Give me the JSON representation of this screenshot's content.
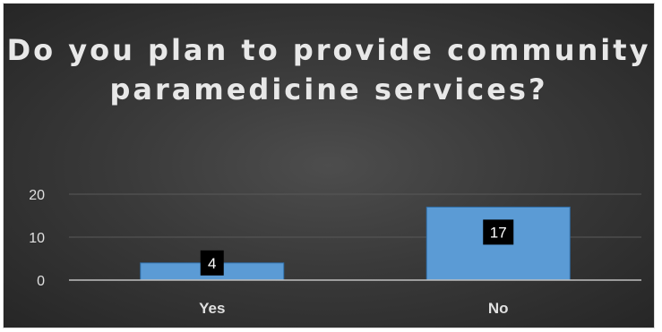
{
  "chart_data": {
    "type": "bar",
    "title": "Do you plan to provide community paramedicine services?",
    "categories": [
      "Yes",
      "No"
    ],
    "values": [
      4,
      17
    ],
    "data_labels": [
      "4",
      "17"
    ],
    "ylim": [
      0,
      20
    ],
    "yticks": [
      "0",
      "10",
      "20"
    ],
    "xlabel": "",
    "ylabel": "",
    "grid": true,
    "legend": "none",
    "colors": {
      "bar_fill": "#5b9bd5",
      "bar_stroke": "#2f6ea8",
      "background": "#3a3a3a",
      "gridline": "#595959",
      "axis_line": "#bfbfbf",
      "label_box": "#000000"
    }
  }
}
